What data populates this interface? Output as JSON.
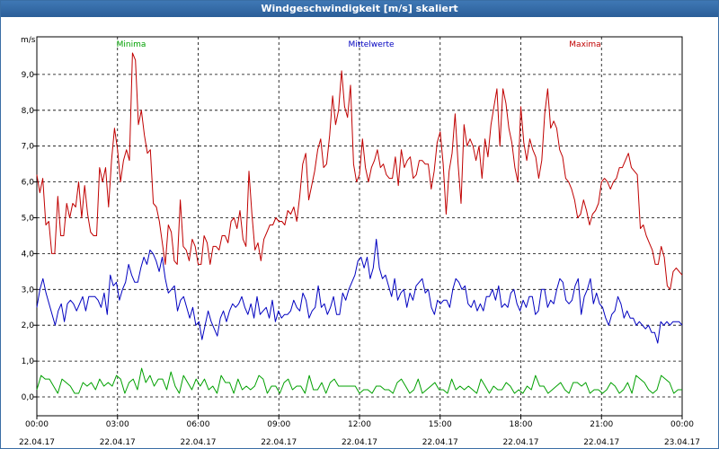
{
  "window": {
    "title": "Windgeschwindigkeit [m/s] skaliert"
  },
  "chart_data": {
    "type": "line",
    "title": "Windgeschwindigkeit [m/s] skaliert",
    "ylabel": "m/s",
    "ylim": [
      -0.5,
      10
    ],
    "y_ticks": [
      "0,0",
      "1,0",
      "2,0",
      "3,0",
      "4,0",
      "5,0",
      "6,0",
      "7,0",
      "8,0",
      "9,0"
    ],
    "x_range_hours": [
      0,
      24
    ],
    "x_ticks": [
      {
        "time": "00:00",
        "date": "22.04.17"
      },
      {
        "time": "03:00",
        "date": "22.04.17"
      },
      {
        "time": "06:00",
        "date": "22.04.17"
      },
      {
        "time": "09:00",
        "date": "22.04.17"
      },
      {
        "time": "12:00",
        "date": "22.04.17"
      },
      {
        "time": "15:00",
        "date": "22.04.17"
      },
      {
        "time": "18:00",
        "date": "22.04.17"
      },
      {
        "time": "21:00",
        "date": "22.04.17"
      },
      {
        "time": "00:00",
        "date": "23.04.17"
      }
    ],
    "grid": true,
    "legend_position": "top",
    "series": [
      {
        "name": "Minima",
        "color": "#00a000",
        "values": [
          0.2,
          0.6,
          0.5,
          0.5,
          0.3,
          0.1,
          0.5,
          0.4,
          0.3,
          0.1,
          0.1,
          0.4,
          0.3,
          0.4,
          0.2,
          0.5,
          0.3,
          0.4,
          0.3,
          0.6,
          0.5,
          0.1,
          0.4,
          0.5,
          0.2,
          0.8,
          0.4,
          0.6,
          0.3,
          0.5,
          0.5,
          0.2,
          0.7,
          0.3,
          0.1,
          0.6,
          0.4,
          0.2,
          0.5,
          0.3,
          0.5,
          0.2,
          0.3,
          0.1,
          0.6,
          0.4,
          0.4,
          0.1,
          0.5,
          0.2,
          0.3,
          0.2,
          0.3,
          0.6,
          0.5,
          0.1,
          0.3,
          0.3,
          0.1,
          0.4,
          0.5,
          0.2,
          0.3,
          0.3,
          0.1,
          0.6,
          0.2,
          0.2,
          0.4,
          0.1,
          0.4,
          0.5,
          0.3,
          0.3,
          0.3,
          0.3,
          0.3,
          0.1,
          0.2,
          0.2,
          0.1,
          0.3,
          0.3,
          0.2,
          0.2,
          0.1,
          0.4,
          0.5,
          0.3,
          0.1,
          0.2,
          0.5,
          0.1,
          0.2,
          0.3,
          0.4,
          0.2,
          0.2,
          0.1,
          0.5,
          0.2,
          0.3,
          0.2,
          0.3,
          0.2,
          0.1,
          0.5,
          0.3,
          0.1,
          0.3,
          0.2,
          0.2,
          0.4,
          0.3,
          0.1,
          0.2,
          0.1,
          0.3,
          0.2,
          0.6,
          0.3,
          0.3,
          0.1,
          0.2,
          0.3,
          0.4,
          0.2,
          0.1,
          0.4,
          0.4,
          0.3,
          0.4,
          0.1,
          0.2,
          0.2,
          0.1,
          0.2,
          0.4,
          0.3,
          0.1,
          0.2,
          0.4,
          0.1,
          0.6,
          0.5,
          0.4,
          0.2,
          0.1,
          0.2,
          0.6,
          0.5,
          0.4,
          0.1,
          0.2,
          0.2
        ]
      },
      {
        "name": "Mittelwerte",
        "color": "#0000c0",
        "values": [
          2.5,
          3.0,
          3.3,
          2.9,
          2.6,
          2.3,
          2.0,
          2.4,
          2.6,
          2.1,
          2.6,
          2.7,
          2.6,
          2.4,
          2.6,
          2.8,
          2.4,
          2.8,
          2.8,
          2.8,
          2.7,
          2.5,
          2.9,
          2.3,
          3.4,
          3.1,
          3.2,
          2.7,
          3.0,
          3.2,
          3.7,
          3.4,
          3.2,
          3.2,
          3.6,
          3.9,
          3.7,
          4.1,
          4.0,
          3.8,
          3.5,
          3.9,
          3.3,
          2.9,
          3.0,
          3.1,
          2.4,
          2.7,
          2.8,
          2.5,
          2.2,
          2.5,
          2.0,
          2.1,
          1.6,
          2.0,
          2.4,
          2.1,
          1.9,
          1.7,
          2.2,
          2.4,
          2.1,
          2.4,
          2.6,
          2.5,
          2.6,
          2.8,
          2.5,
          2.3,
          2.6,
          2.2,
          2.8,
          2.3,
          2.4,
          2.5,
          2.2,
          2.7,
          2.1,
          2.4,
          2.2,
          2.3,
          2.3,
          2.4,
          2.7,
          2.5,
          2.4,
          2.9,
          2.7,
          2.2,
          2.4,
          2.5,
          3.1,
          2.5,
          2.6,
          2.3,
          2.5,
          2.8,
          2.3,
          2.3,
          2.9,
          2.7,
          3.0,
          3.2,
          3.4,
          3.8,
          3.9,
          3.6,
          3.9,
          3.3,
          3.6,
          4.4,
          3.6,
          3.3,
          3.4,
          3.1,
          2.8,
          3.3,
          2.7,
          2.9,
          3.0,
          2.5,
          2.9,
          2.7,
          3.1,
          3.2,
          3.3,
          2.9,
          3.0,
          2.5,
          2.3,
          2.7,
          2.6,
          2.7,
          2.7,
          2.5,
          3.0,
          3.3,
          3.2,
          3.0,
          3.1,
          2.6,
          2.5,
          2.7,
          2.4,
          2.6,
          2.4,
          2.8,
          2.8,
          3.0,
          2.7,
          3.1,
          2.5,
          2.6,
          2.5,
          2.9,
          3.0,
          2.6,
          2.4,
          2.7,
          2.5,
          2.8,
          2.8,
          2.3,
          2.4,
          3.0,
          3.0,
          2.5,
          2.7,
          2.6,
          3.0,
          3.3,
          3.2,
          2.7,
          2.6,
          2.7,
          3.1,
          3.3,
          2.3,
          2.8,
          3.0,
          3.3,
          2.6,
          2.9,
          2.6,
          2.5,
          2.2,
          2.0,
          2.3,
          2.4,
          2.8,
          2.6,
          2.2,
          2.4,
          2.2,
          2.2,
          2.0,
          2.1,
          2.0,
          1.9,
          2.0,
          1.8,
          1.8,
          1.5,
          2.1,
          2.0,
          2.1,
          2.0,
          2.1,
          2.1,
          2.1,
          2.0
        ]
      },
      {
        "name": "Maxima",
        "color": "#c00000",
        "values": [
          6.2,
          5.7,
          6.1,
          4.8,
          4.9,
          4.0,
          4.0,
          5.6,
          4.5,
          4.5,
          5.4,
          5.0,
          5.4,
          5.3,
          6.0,
          5.0,
          5.9,
          5.1,
          4.6,
          4.5,
          4.5,
          6.4,
          6.0,
          6.4,
          5.3,
          6.6,
          7.5,
          6.9,
          6.0,
          6.6,
          6.9,
          6.6,
          9.6,
          9.4,
          7.6,
          8.0,
          7.3,
          6.8,
          6.9,
          5.4,
          5.3,
          4.9,
          4.3,
          3.7,
          4.8,
          4.6,
          3.8,
          3.7,
          5.5,
          4.2,
          4.1,
          3.8,
          4.4,
          4.2,
          3.7,
          3.7,
          4.5,
          4.3,
          3.7,
          4.2,
          4.2,
          4.1,
          4.5,
          4.5,
          4.3,
          4.9,
          5.0,
          4.7,
          5.2,
          4.4,
          4.2,
          6.3,
          5.1,
          4.1,
          4.3,
          3.8,
          4.4,
          4.6,
          4.8,
          4.8,
          5.0,
          4.9,
          4.9,
          4.8,
          5.2,
          5.1,
          5.3,
          4.9,
          5.6,
          6.5,
          6.8,
          5.5,
          5.9,
          6.3,
          6.9,
          7.2,
          6.4,
          6.5,
          7.3,
          8.4,
          7.6,
          8.0,
          9.1,
          8.1,
          7.8,
          8.7,
          6.5,
          6.0,
          6.2,
          7.2,
          6.4,
          6.0,
          6.4,
          6.6,
          6.9,
          6.4,
          6.5,
          6.2,
          6.1,
          6.1,
          6.7,
          5.9,
          6.9,
          6.4,
          6.6,
          6.7,
          6.1,
          6.2,
          6.6,
          6.6,
          6.5,
          6.5,
          5.8,
          6.3,
          7.1,
          7.4,
          6.5,
          5.1,
          6.3,
          6.8,
          7.9,
          6.5,
          5.4,
          7.6,
          7.0,
          7.2,
          7.0,
          6.6,
          7.0,
          6.1,
          7.2,
          6.7,
          7.6,
          8.1,
          8.6,
          7.0,
          8.6,
          8.2,
          7.5,
          7.1,
          6.4,
          6.0,
          8.1,
          7.1,
          6.6,
          7.2,
          6.9,
          6.7,
          6.1,
          6.6,
          7.9,
          8.6,
          7.5,
          7.7,
          7.5,
          6.9,
          6.7,
          6.1,
          6.0,
          5.8,
          5.5,
          5.0,
          5.1,
          5.5,
          5.2,
          4.8,
          5.1,
          5.2,
          5.4,
          6.0,
          6.1,
          6.0,
          5.8,
          6.0,
          6.1,
          6.4,
          6.4,
          6.6,
          6.8,
          6.4,
          6.3,
          6.2,
          4.7,
          4.8,
          4.5,
          4.3,
          4.1,
          3.7,
          3.7,
          4.2,
          3.9,
          3.1,
          3.0,
          3.5,
          3.6,
          3.5,
          3.4
        ]
      }
    ]
  }
}
